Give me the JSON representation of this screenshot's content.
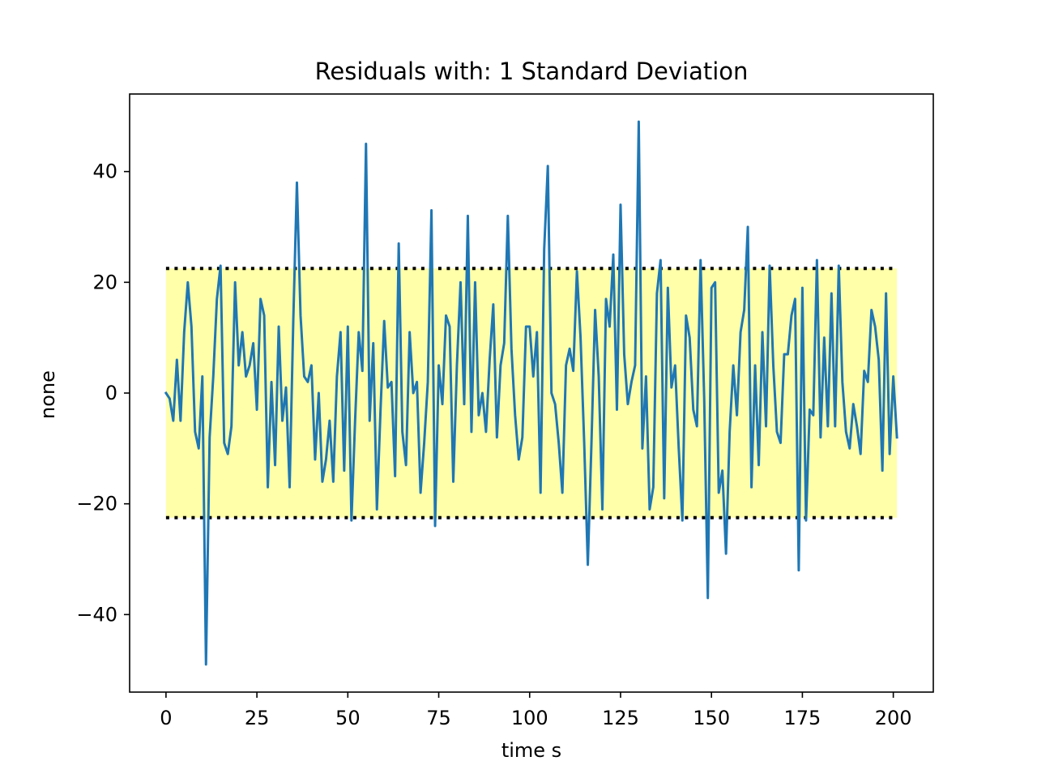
{
  "chart_data": {
    "type": "line",
    "title": "Residuals with: 1 Standard Deviation",
    "xlabel": "time s",
    "ylabel": "none",
    "xlim": [
      -10,
      211
    ],
    "ylim": [
      -54,
      54
    ],
    "xticks": [
      0,
      25,
      50,
      75,
      100,
      125,
      150,
      175,
      200
    ],
    "xtick_labels": [
      "0",
      "25",
      "50",
      "75",
      "100",
      "125",
      "150",
      "175",
      "200"
    ],
    "yticks": [
      -40,
      -20,
      0,
      20,
      40
    ],
    "ytick_labels": [
      "−40",
      "−20",
      "0",
      "20",
      "40"
    ],
    "grid": false,
    "band": {
      "lower": -22.5,
      "upper": 22.5,
      "x_range": [
        0,
        201
      ],
      "fill_color": "#ffffaa",
      "edge_style": "dotted",
      "edge_color": "#000000"
    },
    "series": [
      {
        "color": "#1f77b4",
        "x_start": 0,
        "x_step": 1,
        "values": [
          0,
          -1,
          -5,
          6,
          -5,
          11,
          20,
          12,
          -7,
          -10,
          3,
          -49,
          -8,
          3,
          17,
          23,
          -9,
          -11,
          -6,
          20,
          5,
          11,
          3,
          5,
          9,
          -3,
          17,
          14,
          -17,
          2,
          -13,
          12,
          -5,
          1,
          -17,
          13,
          38,
          14,
          3,
          2,
          5,
          -12,
          0,
          -16,
          -12,
          -5,
          -16,
          3,
          11,
          -14,
          12,
          -23,
          -5,
          11,
          4,
          45,
          -5,
          9,
          -21,
          -3,
          13,
          1,
          2,
          -15,
          27,
          -7,
          -13,
          11,
          0,
          2,
          -18,
          -9,
          2,
          33,
          -24,
          5,
          -2,
          14,
          12,
          -16,
          5,
          20,
          -2,
          32,
          -7,
          20,
          -4,
          0,
          -7,
          6,
          16,
          -8,
          5,
          9,
          32,
          8,
          -4,
          -12,
          -8,
          12,
          12,
          3,
          11,
          -18,
          26,
          41,
          0,
          -2,
          -9,
          -18,
          5,
          8,
          4,
          22,
          10,
          -9,
          -31,
          -9,
          15,
          3,
          -21,
          17,
          12,
          25,
          -3,
          34,
          7,
          -2,
          2,
          5,
          49,
          -10,
          3,
          -21,
          -17,
          18,
          24,
          -19,
          19,
          1,
          5,
          -10,
          -23,
          14,
          10,
          -3,
          -6,
          24,
          -1,
          -37,
          19,
          20,
          -18,
          -14,
          -29,
          -7,
          5,
          -4,
          11,
          15,
          30,
          -17,
          5,
          -13,
          11,
          -6,
          23,
          5,
          -7,
          -9,
          7,
          7,
          14,
          17,
          -32,
          19,
          -23,
          -3,
          -4,
          24,
          -8,
          10,
          -6,
          18,
          -6,
          23,
          2,
          -7,
          -10,
          -2,
          -6,
          -11,
          4,
          2,
          15,
          12,
          6,
          -14,
          18,
          -11,
          3,
          -8
        ]
      }
    ]
  }
}
